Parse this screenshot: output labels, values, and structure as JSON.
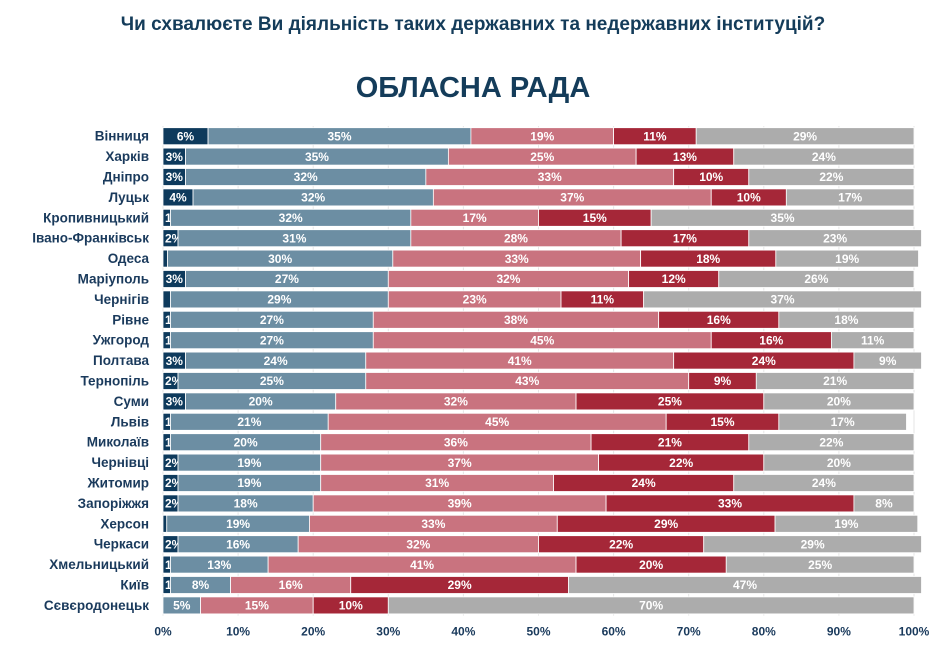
{
  "header": {
    "question": "Чи схвалюєте Ви діяльність таких державних та недержавних інституцій?",
    "title": "ОБЛАСНА РАДА"
  },
  "chart_data": {
    "type": "bar",
    "orientation": "horizontal",
    "stacked": true,
    "normalized": true,
    "categories": [
      "Вінниця",
      "Харків",
      "Дніпро",
      "Луцьк",
      "Кропивницький",
      "Івано-Франківськ",
      "Одеса",
      "Маріуполь",
      "Чернігів",
      "Рівне",
      "Ужгород",
      "Полтава",
      "Тернопіль",
      "Суми",
      "Львів",
      "Миколаїв",
      "Чернівці",
      "Житомир",
      "Запоріжжя",
      "Херсон",
      "Черкаси",
      "Хмельницький",
      "Київ",
      "Сєвєродонецьк"
    ],
    "series": [
      {
        "color": "#0e3a5c",
        "values": [
          6,
          3,
          3,
          4,
          1,
          2,
          0.6,
          3,
          1,
          1,
          1,
          3,
          2,
          3,
          1,
          1,
          2,
          2,
          2,
          0.5,
          2,
          1,
          1,
          0
        ],
        "labels": [
          "6%",
          "3%",
          "3%",
          "4%",
          "1%",
          "2%",
          "",
          "3%",
          "",
          "1%",
          "1%",
          "3%",
          "2%",
          "3%",
          "1%",
          "1%",
          "2%",
          "2%",
          "2%",
          "",
          "2%",
          "1%",
          "1%",
          ""
        ]
      },
      {
        "color": "#6c8ea3",
        "values": [
          35,
          35,
          32,
          32,
          32,
          31,
          30,
          27,
          29,
          27,
          27,
          24,
          25,
          20,
          21,
          20,
          19,
          19,
          18,
          19,
          16,
          13,
          8,
          5
        ],
        "labels": [
          "35%",
          "35%",
          "32%",
          "32%",
          "32%",
          "31%",
          "30%",
          "27%",
          "29%",
          "27%",
          "27%",
          "24%",
          "25%",
          "20%",
          "21%",
          "20%",
          "19%",
          "19%",
          "18%",
          "19%",
          "16%",
          "13%",
          "8%",
          "5%"
        ]
      },
      {
        "color": "#c9737f",
        "values": [
          19,
          25,
          33,
          37,
          17,
          28,
          33,
          32,
          23,
          38,
          45,
          41,
          43,
          32,
          45,
          36,
          37,
          31,
          39,
          33,
          32,
          41,
          16,
          15
        ],
        "labels": [
          "19%",
          "25%",
          "33%",
          "37%",
          "17%",
          "28%",
          "33%",
          "32%",
          "23%",
          "38%",
          "45%",
          "41%",
          "43%",
          "32%",
          "45%",
          "36%",
          "37%",
          "31%",
          "39%",
          "33%",
          "32%",
          "41%",
          "16%",
          "15%"
        ]
      },
      {
        "color": "#a52738",
        "values": [
          11,
          13,
          10,
          10,
          15,
          17,
          18,
          12,
          11,
          16,
          16,
          24,
          9,
          25,
          15,
          21,
          22,
          24,
          33,
          29,
          22,
          20,
          29,
          10
        ],
        "labels": [
          "11%",
          "13%",
          "10%",
          "10%",
          "15%",
          "17%",
          "18%",
          "12%",
          "11%",
          "16%",
          "16%",
          "24%",
          "9%",
          "25%",
          "15%",
          "21%",
          "22%",
          "24%",
          "33%",
          "29%",
          "22%",
          "20%",
          "29%",
          "10%"
        ]
      },
      {
        "color": "#acacac",
        "values": [
          29,
          24,
          22,
          17,
          35,
          23,
          19,
          26,
          37,
          18,
          11,
          9,
          21,
          20,
          17,
          22,
          20,
          24,
          8,
          19,
          29,
          25,
          47,
          70
        ],
        "labels": [
          "29%",
          "24%",
          "22%",
          "17%",
          "35%",
          "23%",
          "19%",
          "26%",
          "37%",
          "18%",
          "11%",
          "9%",
          "21%",
          "20%",
          "17%",
          "22%",
          "20%",
          "24%",
          "8%",
          "19%",
          "29%",
          "25%",
          "47%",
          "70%"
        ]
      }
    ],
    "x_ticks": [
      "0%",
      "10%",
      "20%",
      "30%",
      "40%",
      "50%",
      "60%",
      "70%",
      "80%",
      "90%",
      "100%"
    ],
    "xlim": [
      0,
      100
    ]
  }
}
